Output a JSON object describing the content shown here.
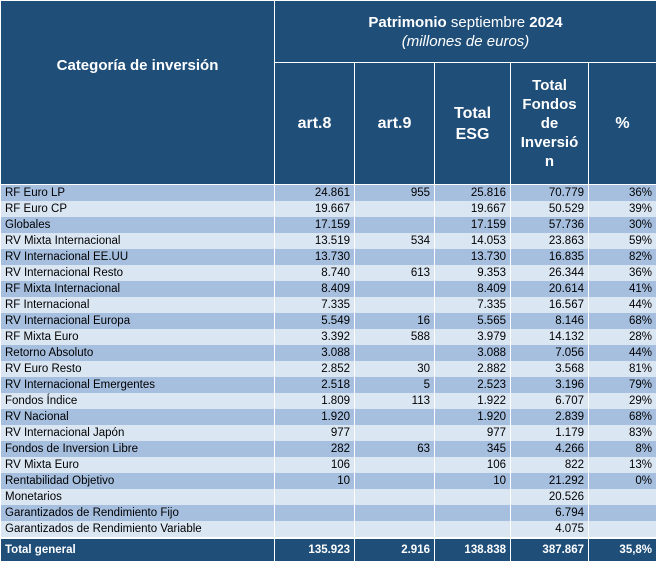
{
  "header": {
    "category": "Categoría de inversión",
    "patrimonio_bold": "Patrimonio",
    "patrimonio_month": " septiembre ",
    "patrimonio_year": "2024",
    "units": "(millones de euros)",
    "columns": [
      "art.8",
      "art.9",
      "Total ESG",
      "Total Fondos de Inversión",
      "%"
    ]
  },
  "rows": [
    [
      "RF Euro LP",
      "24.861",
      "955",
      "25.816",
      "70.779",
      "36%"
    ],
    [
      "RF Euro CP",
      "19.667",
      "",
      "19.667",
      "50.529",
      "39%"
    ],
    [
      "Globales",
      "17.159",
      "",
      "17.159",
      "57.736",
      "30%"
    ],
    [
      "RV Mixta Internacional",
      "13.519",
      "534",
      "14.053",
      "23.863",
      "59%"
    ],
    [
      "RV Internacional EE.UU",
      "13.730",
      "",
      "13.730",
      "16.835",
      "82%"
    ],
    [
      "RV Internacional Resto",
      "8.740",
      "613",
      "9.353",
      "26.344",
      "36%"
    ],
    [
      "RF Mixta Internacional",
      "8.409",
      "",
      "8.409",
      "20.614",
      "41%"
    ],
    [
      "RF Internacional",
      "7.335",
      "",
      "7.335",
      "16.567",
      "44%"
    ],
    [
      "RV Internacional Europa",
      "5.549",
      "16",
      "5.565",
      "8.146",
      "68%"
    ],
    [
      "RF Mixta Euro",
      "3.392",
      "588",
      "3.979",
      "14.132",
      "28%"
    ],
    [
      "Retorno Absoluto",
      "3.088",
      "",
      "3.088",
      "7.056",
      "44%"
    ],
    [
      "RV Euro Resto",
      "2.852",
      "30",
      "2.882",
      "3.568",
      "81%"
    ],
    [
      "RV Internacional Emergentes",
      "2.518",
      "5",
      "2.523",
      "3.196",
      "79%"
    ],
    [
      "Fondos Índice",
      "1.809",
      "113",
      "1.922",
      "6.707",
      "29%"
    ],
    [
      "RV Nacional",
      "1.920",
      "",
      "1.920",
      "2.839",
      "68%"
    ],
    [
      "RV Internacional Japón",
      "977",
      "",
      "977",
      "1.179",
      "83%"
    ],
    [
      "Fondos de Inversion Libre",
      "282",
      "63",
      "345",
      "4.266",
      "8%"
    ],
    [
      "RV Mixta Euro",
      "106",
      "",
      "106",
      "822",
      "13%"
    ],
    [
      "Rentabilidad Objetivo",
      "10",
      "",
      "10",
      "21.292",
      "0%"
    ],
    [
      "Monetarios",
      "",
      "",
      "",
      "20.526",
      ""
    ],
    [
      "Garantizados de Rendimiento Fijo",
      "",
      "",
      "",
      "6.794",
      ""
    ],
    [
      "Garantizados de Rendimiento Variable",
      "",
      "",
      "",
      "4.075",
      ""
    ]
  ],
  "total": [
    "Total general",
    "135.923",
    "2.916",
    "138.838",
    "387.867",
    "35,8%"
  ],
  "colors": {
    "header_bg": "#1f4e79",
    "row_dark": "#a6bfdf",
    "row_light": "#dbe6f3"
  }
}
